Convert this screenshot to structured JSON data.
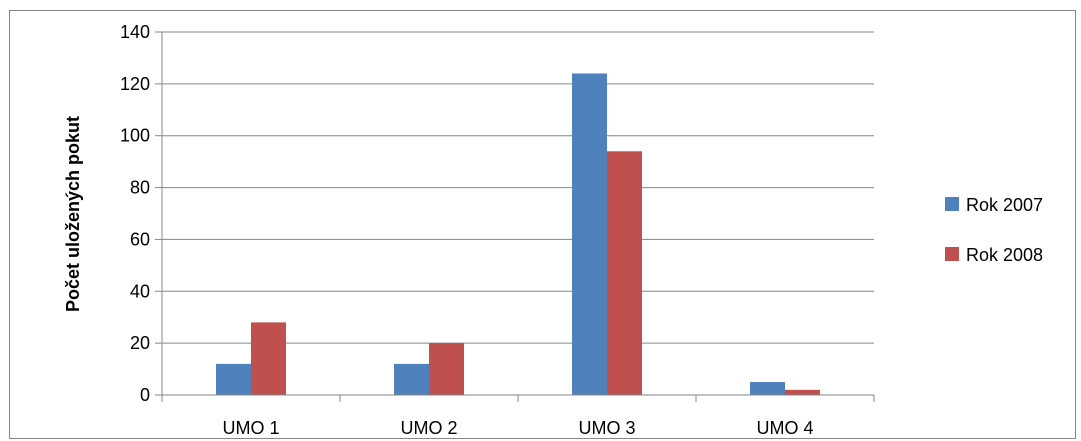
{
  "chart_data": {
    "type": "bar",
    "title": "",
    "xlabel": "",
    "ylabel": "Počet uložených pokut",
    "categories": [
      "UMO 1",
      "UMO 2",
      "UMO 3",
      "UMO 4"
    ],
    "series": [
      {
        "name": "Rok 2007",
        "color": "#4f81bd",
        "values": [
          12,
          12,
          124,
          5
        ]
      },
      {
        "name": "Rok 2008",
        "color": "#c0504d",
        "values": [
          28,
          20,
          94,
          2
        ]
      }
    ],
    "ylim": [
      0,
      140
    ],
    "yticks": [
      0,
      20,
      40,
      60,
      80,
      100,
      120,
      140
    ],
    "grid": true,
    "legend_position": "right"
  }
}
